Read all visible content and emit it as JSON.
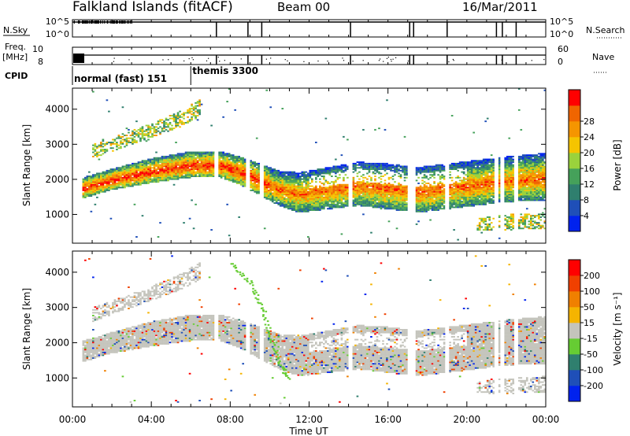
{
  "header": {
    "station": "Falkland Islands (fitACF)",
    "beam": "Beam 00",
    "date": "16/Mar/2011"
  },
  "top_panels": {
    "nsky_label": "N.Sky",
    "nsky_ticks": [
      "10^5",
      "10^0"
    ],
    "nsearch_label": "N.Search",
    "nsearch_ticks": [
      "10^5",
      "10^0"
    ],
    "freq_label": "Freq.",
    "freq_unit": "[MHz]",
    "freq_ticks": [
      "10",
      "8"
    ],
    "nave_label": "Nave",
    "nave_ticks": [
      "60",
      "0"
    ],
    "cpid_label": "CPID",
    "cpid_segments": [
      {
        "label": "normal (fast) 151",
        "start_hour": 0.0,
        "end_hour": 6.0
      },
      {
        "label": "themis 3300",
        "start_hour": 6.0,
        "end_hour": 24.0
      }
    ],
    "gap_hours": [
      7.3,
      8.9,
      9.6,
      14.1,
      17.1,
      17.3,
      19.0,
      21.5,
      21.8,
      22.5
    ]
  },
  "chart_data": [
    {
      "type": "heatmap",
      "name": "power",
      "ylabel": "Slant Range [km]",
      "xlabel": "",
      "xlim": [
        0,
        24
      ],
      "ylim": [
        180,
        4600
      ],
      "yticks": [
        1000,
        2000,
        3000,
        4000
      ],
      "colorbar": {
        "label": "Power [dB]",
        "ticks": [
          "4",
          "8",
          "12",
          "16",
          "20",
          "24",
          "28"
        ],
        "colors": [
          "#0022ee",
          "#1f4fb8",
          "#2f7f6e",
          "#45a15a",
          "#9ad23c",
          "#f5c400",
          "#f59500",
          "#f06500",
          "#ff0000"
        ]
      },
      "bands": [
        {
          "name": "main",
          "points": [
            [
              0.5,
              1450,
              2050
            ],
            [
              2.0,
              1700,
              2300
            ],
            [
              4.0,
              1900,
              2600
            ],
            [
              6.0,
              2050,
              2800
            ],
            [
              7.5,
              2050,
              2800
            ],
            [
              8.5,
              1850,
              2650
            ],
            [
              9.5,
              1550,
              2450
            ],
            [
              10.5,
              1250,
              2250
            ],
            [
              11.5,
              1050,
              2200
            ],
            [
              13.0,
              1150,
              2350
            ],
            [
              14.5,
              1250,
              2500
            ],
            [
              16.0,
              1150,
              2450
            ],
            [
              17.5,
              1050,
              2350
            ],
            [
              19.0,
              1150,
              2450
            ],
            [
              20.5,
              1250,
              2550
            ],
            [
              22.0,
              1350,
              2650
            ],
            [
              24.0,
              1400,
              2750
            ]
          ]
        },
        {
          "name": "upper-arc",
          "points": [
            [
              1.0,
              2600,
              3000
            ],
            [
              2.5,
              2900,
              3300
            ],
            [
              4.0,
              3200,
              3600
            ],
            [
              5.5,
              3500,
              3950
            ],
            [
              6.5,
              3800,
              4300
            ]
          ]
        },
        {
          "name": "late-lower",
          "points": [
            [
              20.5,
              550,
              900
            ],
            [
              22.0,
              550,
              1000
            ],
            [
              24.0,
              600,
              1050
            ]
          ]
        }
      ]
    },
    {
      "type": "heatmap",
      "name": "velocity",
      "ylabel": "Slant Range [km]",
      "xlabel": "Time UT",
      "xlim": [
        0,
        24
      ],
      "ylim": [
        180,
        4600
      ],
      "yticks": [
        1000,
        2000,
        3000,
        4000
      ],
      "xticks": [
        "00:00",
        "04:00",
        "08:00",
        "12:00",
        "16:00",
        "20:00",
        "00:00"
      ],
      "colorbar": {
        "label": "Velocity [m s⁻¹]",
        "ticks": [
          "200",
          "100",
          "50",
          "15",
          "-15",
          "-50",
          "-100",
          "-200"
        ],
        "colors": [
          "#0022ee",
          "#1f4fb8",
          "#2f7f6e",
          "#66cc33",
          "#c4c4bc",
          "#f5b400",
          "#f08000",
          "#f04000",
          "#ff0000"
        ]
      },
      "bands": [
        {
          "name": "ground-scatter",
          "points": [
            [
              0.5,
              1450,
              2050
            ],
            [
              2.0,
              1700,
              2300
            ],
            [
              4.0,
              1900,
              2600
            ],
            [
              6.0,
              2050,
              2800
            ],
            [
              7.5,
              2050,
              2800
            ],
            [
              8.5,
              1850,
              2650
            ],
            [
              9.5,
              1550,
              2450
            ],
            [
              10.5,
              1250,
              2250
            ],
            [
              11.5,
              1050,
              2200
            ],
            [
              13.0,
              1150,
              2350
            ],
            [
              14.5,
              1250,
              2500
            ],
            [
              16.0,
              1150,
              2450
            ],
            [
              17.5,
              1050,
              2350
            ],
            [
              19.0,
              1150,
              2450
            ],
            [
              20.5,
              1250,
              2550
            ],
            [
              22.0,
              1350,
              2650
            ],
            [
              24.0,
              1400,
              2750
            ]
          ]
        },
        {
          "name": "upper-arc",
          "points": [
            [
              1.0,
              2600,
              3000
            ],
            [
              2.5,
              2900,
              3300
            ],
            [
              4.0,
              3200,
              3600
            ],
            [
              5.5,
              3500,
              3950
            ],
            [
              6.5,
              3800,
              4300
            ]
          ]
        },
        {
          "name": "late-lower",
          "points": [
            [
              20.5,
              550,
              900
            ],
            [
              22.0,
              550,
              1000
            ],
            [
              24.0,
              600,
              1050
            ]
          ]
        }
      ],
      "green_streak": [
        [
          8.0,
          4300
        ],
        [
          9.0,
          3700
        ],
        [
          9.6,
          3000
        ],
        [
          10.0,
          2200
        ],
        [
          10.5,
          1400
        ],
        [
          10.9,
          1000
        ]
      ]
    }
  ]
}
